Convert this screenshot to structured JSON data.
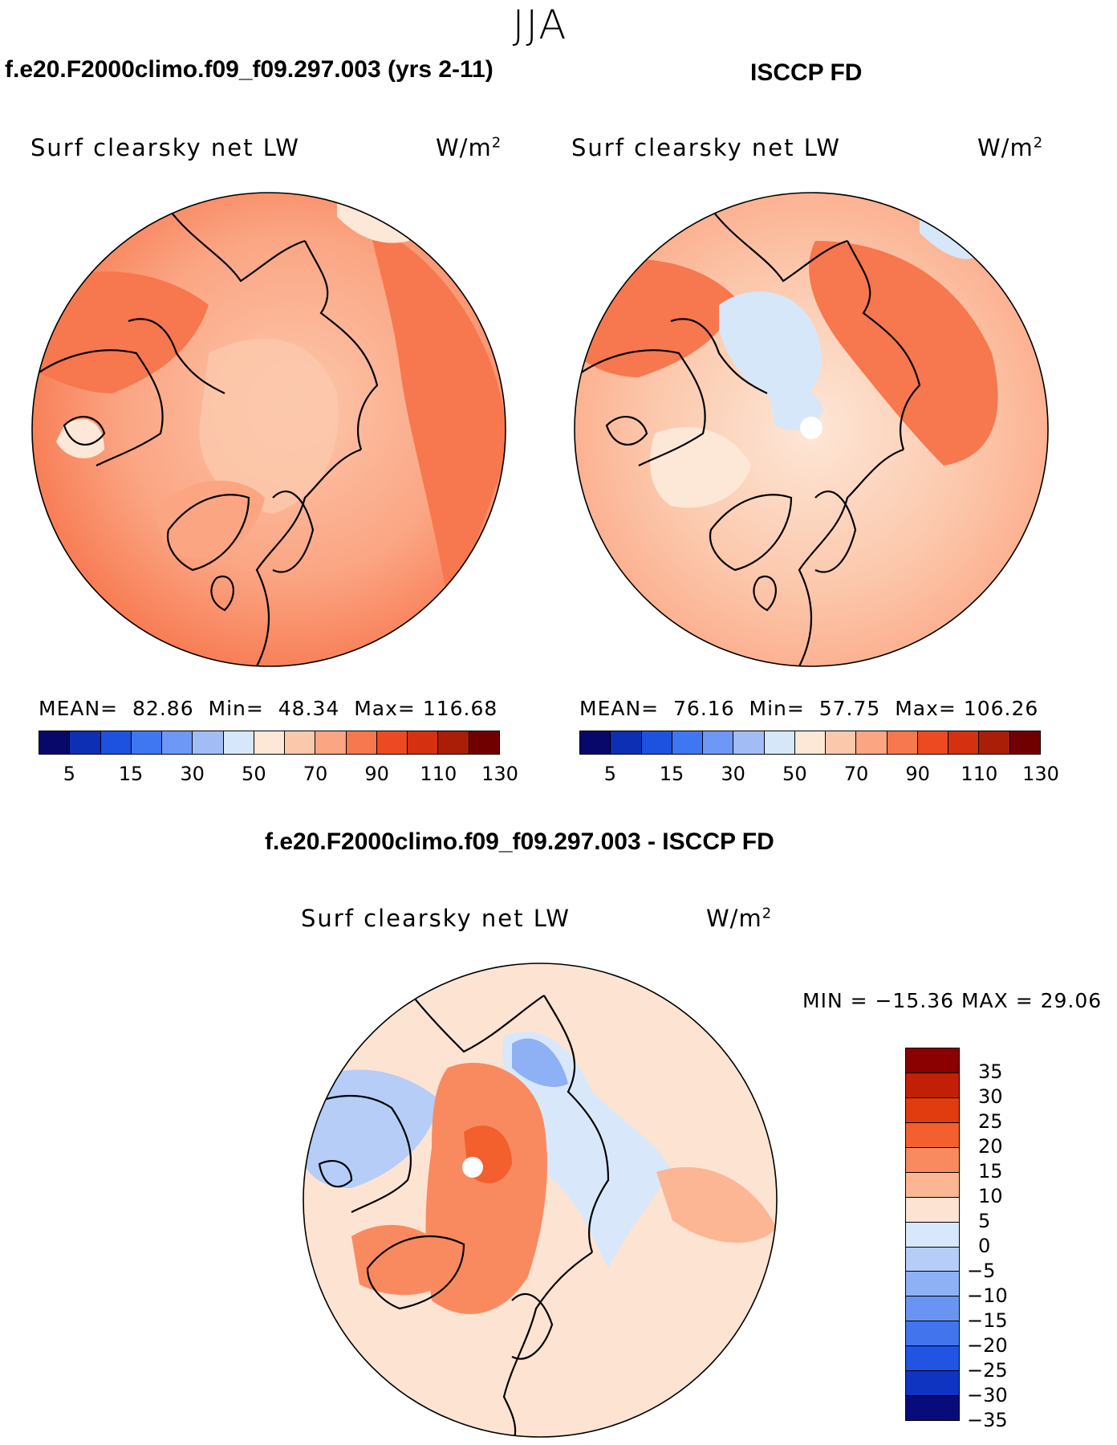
{
  "season": "JJA",
  "panels": [
    {
      "id": "model",
      "title": "f.e20.F2000climo.f09_f09.297.003 (yrs 2-11)",
      "variable": "Surf clearsky net LW",
      "unit_base": "W/m",
      "unit_exp": "2",
      "stats": {
        "mean_label": "MEAN=",
        "mean": "82.86",
        "min_label": "Min=",
        "min": "48.34",
        "max_label": "Max=",
        "max": "116.68"
      }
    },
    {
      "id": "obs",
      "title": "ISCCP FD",
      "variable": "Surf clearsky net LW",
      "unit_base": "W/m",
      "unit_exp": "2",
      "stats": {
        "mean_label": "MEAN=",
        "mean": "76.16",
        "min_label": "Min=",
        "min": "57.75",
        "max_label": "Max=",
        "max": "106.26"
      }
    }
  ],
  "diff": {
    "title": "f.e20.F2000climo.f09_f09.297.003 - ISCCP FD",
    "variable": "Surf clearsky net LW",
    "unit_base": "W/m",
    "unit_exp": "2",
    "minmax_text": "MIN = −15.36 MAX =   29.06"
  },
  "chart_data": [
    {
      "type": "heatmap",
      "projection": "north polar stereographic",
      "title": "f.e20.F2000climo.f09_f09.297.003 (yrs 2-11)",
      "variable": "Surf clearsky net LW",
      "units": "W/m2",
      "mean": 82.86,
      "min": 48.34,
      "max": 116.68,
      "colorbar_ticks": [
        "5",
        "15",
        "30",
        "50",
        "70",
        "90",
        "110",
        "130"
      ],
      "colors": [
        "#08086b",
        "#0c2fb4",
        "#1d52e0",
        "#3f76f2",
        "#6e98f5",
        "#a2bdf6",
        "#d6e7f9",
        "#fde7d7",
        "#fcc8ac",
        "#fba583",
        "#f7774e",
        "#ed4a22",
        "#d5300f",
        "#aa1d07",
        "#700000"
      ]
    },
    {
      "type": "heatmap",
      "projection": "north polar stereographic",
      "title": "ISCCP FD",
      "variable": "Surf clearsky net LW",
      "units": "W/m2",
      "mean": 76.16,
      "min": 57.75,
      "max": 106.26,
      "colorbar_ticks": [
        "5",
        "15",
        "30",
        "50",
        "70",
        "90",
        "110",
        "130"
      ],
      "colors": [
        "#08086b",
        "#0c2fb4",
        "#1d52e0",
        "#3f76f2",
        "#6e98f5",
        "#a2bdf6",
        "#d6e7f9",
        "#fde7d7",
        "#fcc8ac",
        "#fba583",
        "#f7774e",
        "#ed4a22",
        "#d5300f",
        "#aa1d07",
        "#700000"
      ]
    },
    {
      "type": "heatmap",
      "projection": "north polar stereographic",
      "title": "f.e20.F2000climo.f09_f09.297.003 - ISCCP FD",
      "variable": "Surf clearsky net LW",
      "units": "W/m2",
      "min": -15.36,
      "max": 29.06,
      "colorbar_ticks": [
        "35",
        "30",
        "25",
        "20",
        "15",
        "10",
        "5",
        "0",
        "−5",
        "−10",
        "−15",
        "−20",
        "−25",
        "−30",
        "−35"
      ],
      "colors": [
        "#8b0000",
        "#c11f06",
        "#e03c10",
        "#f35f2d",
        "#f98a5f",
        "#fcb694",
        "#fde3d2",
        "#d8e8fa",
        "#b5cdf7",
        "#8eb0f4",
        "#6a94f2",
        "#4274ee",
        "#2154e3",
        "#0f34c2",
        "#080c7a"
      ]
    }
  ]
}
